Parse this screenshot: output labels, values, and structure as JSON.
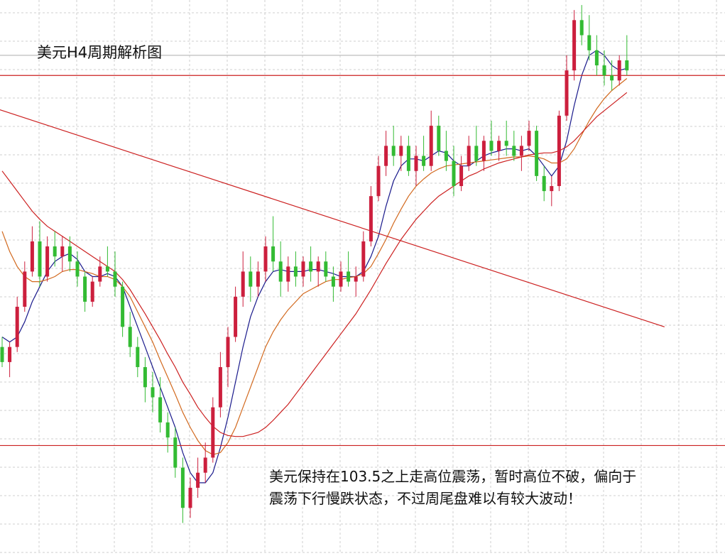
{
  "chart_data": {
    "type": "candlestick",
    "title": "美元H4周期解析图",
    "annotation_lines": [
      "美元保持在103.5之上走高位震荡，暂时高位不破，偏向于",
      "震荡下行慢跌状态，不过周尾盘难以有较大波动！"
    ],
    "xlabel": "",
    "ylabel": "",
    "grid": true,
    "ylim": [
      99.8,
      105.3
    ],
    "candles": [
      [
        101.85,
        101.95,
        101.65,
        101.7
      ],
      [
        101.7,
        101.9,
        101.55,
        101.85
      ],
      [
        101.85,
        102.35,
        101.8,
        102.25
      ],
      [
        102.25,
        102.7,
        102.2,
        102.6
      ],
      [
        102.6,
        103.05,
        102.55,
        102.9
      ],
      [
        102.9,
        103.1,
        102.45,
        102.55
      ],
      [
        102.55,
        102.95,
        102.5,
        102.85
      ],
      [
        102.85,
        103.0,
        102.65,
        102.75
      ],
      [
        102.75,
        102.95,
        102.6,
        102.85
      ],
      [
        102.85,
        102.95,
        102.6,
        102.7
      ],
      [
        102.7,
        102.8,
        102.45,
        102.55
      ],
      [
        102.55,
        102.6,
        102.2,
        102.3
      ],
      [
        102.3,
        102.55,
        102.25,
        102.5
      ],
      [
        102.5,
        102.75,
        102.45,
        102.65
      ],
      [
        102.65,
        102.85,
        102.55,
        102.6
      ],
      [
        102.6,
        102.8,
        102.35,
        102.45
      ],
      [
        102.45,
        102.5,
        101.95,
        102.05
      ],
      [
        102.05,
        102.2,
        101.75,
        101.85
      ],
      [
        101.85,
        101.95,
        101.55,
        101.65
      ],
      [
        101.65,
        101.75,
        101.3,
        101.45
      ],
      [
        101.45,
        101.6,
        101.2,
        101.35
      ],
      [
        101.35,
        101.55,
        101.0,
        101.1
      ],
      [
        101.1,
        101.2,
        100.8,
        100.95
      ],
      [
        100.95,
        101.05,
        100.55,
        100.65
      ],
      [
        100.65,
        100.75,
        100.1,
        100.25
      ],
      [
        100.25,
        100.55,
        100.15,
        100.45
      ],
      [
        100.45,
        100.75,
        100.35,
        100.6
      ],
      [
        100.6,
        100.9,
        100.5,
        100.75
      ],
      [
        100.75,
        101.35,
        100.7,
        101.25
      ],
      [
        101.25,
        101.8,
        101.15,
        101.65
      ],
      [
        101.65,
        102.05,
        101.45,
        101.95
      ],
      [
        101.95,
        102.45,
        101.9,
        102.35
      ],
      [
        102.35,
        102.8,
        102.25,
        102.6
      ],
      [
        102.6,
        102.75,
        102.3,
        102.45
      ],
      [
        102.45,
        102.7,
        102.35,
        102.6
      ],
      [
        102.6,
        102.95,
        102.5,
        102.85
      ],
      [
        102.85,
        103.15,
        102.6,
        102.7
      ],
      [
        102.7,
        102.9,
        102.35,
        102.5
      ],
      [
        102.5,
        102.75,
        102.4,
        102.65
      ],
      [
        102.65,
        102.8,
        102.45,
        102.55
      ],
      [
        102.55,
        102.75,
        102.45,
        102.7
      ],
      [
        102.7,
        102.85,
        102.5,
        102.6
      ],
      [
        102.6,
        102.75,
        102.45,
        102.7
      ],
      [
        102.7,
        102.8,
        102.5,
        102.55
      ],
      [
        102.55,
        102.65,
        102.3,
        102.45
      ],
      [
        102.45,
        102.7,
        102.4,
        102.6
      ],
      [
        102.6,
        102.8,
        102.45,
        102.5
      ],
      [
        102.5,
        102.65,
        102.35,
        102.55
      ],
      [
        102.55,
        103.0,
        102.5,
        102.9
      ],
      [
        102.9,
        103.45,
        102.85,
        103.35
      ],
      [
        103.35,
        103.75,
        103.3,
        103.65
      ],
      [
        103.65,
        104.0,
        103.55,
        103.85
      ],
      [
        103.85,
        104.05,
        103.65,
        103.75
      ],
      [
        103.75,
        103.95,
        103.6,
        103.85
      ],
      [
        103.85,
        103.95,
        103.55,
        103.6
      ],
      [
        103.6,
        103.85,
        103.45,
        103.75
      ],
      [
        103.75,
        103.95,
        103.6,
        103.65
      ],
      [
        103.65,
        104.2,
        103.6,
        104.05
      ],
      [
        104.05,
        104.15,
        103.75,
        103.8
      ],
      [
        103.8,
        104.0,
        103.6,
        103.7
      ],
      [
        103.7,
        103.85,
        103.35,
        103.45
      ],
      [
        103.45,
        103.75,
        103.4,
        103.65
      ],
      [
        103.65,
        103.95,
        103.6,
        103.85
      ],
      [
        103.85,
        104.05,
        103.65,
        103.7
      ],
      [
        103.7,
        103.95,
        103.6,
        103.9
      ],
      [
        103.9,
        104.1,
        103.75,
        103.8
      ],
      [
        103.8,
        103.95,
        103.7,
        103.9
      ],
      [
        103.9,
        104.1,
        103.75,
        103.85
      ],
      [
        103.85,
        104.0,
        103.7,
        103.75
      ],
      [
        103.75,
        103.95,
        103.6,
        103.85
      ],
      [
        103.85,
        104.1,
        103.8,
        104.0
      ],
      [
        104.0,
        104.05,
        103.5,
        103.55
      ],
      [
        103.55,
        103.65,
        103.3,
        103.4
      ],
      [
        103.4,
        103.55,
        103.25,
        103.45
      ],
      [
        103.45,
        104.2,
        103.4,
        104.15
      ],
      [
        104.15,
        104.75,
        104.1,
        104.6
      ],
      [
        104.6,
        105.2,
        104.5,
        105.1
      ],
      [
        105.1,
        105.25,
        104.85,
        104.95
      ],
      [
        104.95,
        105.15,
        104.7,
        104.8
      ],
      [
        104.8,
        104.95,
        104.55,
        104.65
      ],
      [
        104.65,
        104.8,
        104.45,
        104.55
      ],
      [
        104.55,
        104.7,
        104.4,
        104.5
      ],
      [
        104.5,
        104.75,
        104.45,
        104.7
      ],
      [
        104.7,
        104.95,
        104.55,
        104.6
      ]
    ],
    "moving_averages": [
      {
        "color": "#1a1a8c",
        "values": [
          101.95,
          101.9,
          101.95,
          102.1,
          102.3,
          102.45,
          102.6,
          102.7,
          102.75,
          102.78,
          102.72,
          102.6,
          102.55,
          102.55,
          102.58,
          102.55,
          102.45,
          102.25,
          102.05,
          101.85,
          101.65,
          101.45,
          101.25,
          101.05,
          100.8,
          100.6,
          100.5,
          100.5,
          100.6,
          100.85,
          101.15,
          101.5,
          101.85,
          102.15,
          102.35,
          102.5,
          102.6,
          102.62,
          102.6,
          102.6,
          102.6,
          102.62,
          102.62,
          102.6,
          102.58,
          102.55,
          102.55,
          102.55,
          102.6,
          102.75,
          102.95,
          103.25,
          103.5,
          103.65,
          103.72,
          103.72,
          103.7,
          103.75,
          103.8,
          103.78,
          103.7,
          103.65,
          103.65,
          103.7,
          103.75,
          103.78,
          103.8,
          103.82,
          103.82,
          103.8,
          103.82,
          103.75,
          103.65,
          103.55,
          103.65,
          103.9,
          104.25,
          104.55,
          104.75,
          104.8,
          104.75,
          104.65,
          104.6,
          104.62
        ]
      },
      {
        "color": "#d2691e",
        "values": [
          103.0,
          102.8,
          102.65,
          102.55,
          102.5,
          102.5,
          102.52,
          102.55,
          102.6,
          102.62,
          102.62,
          102.6,
          102.58,
          102.55,
          102.55,
          102.52,
          102.45,
          102.35,
          102.2,
          102.05,
          101.9,
          101.72,
          101.55,
          101.38,
          101.2,
          101.05,
          100.92,
          100.82,
          100.78,
          100.8,
          100.9,
          101.05,
          101.25,
          101.45,
          101.65,
          101.85,
          102.0,
          102.12,
          102.22,
          102.3,
          102.38,
          102.42,
          102.46,
          102.5,
          102.52,
          102.52,
          102.54,
          102.55,
          102.58,
          102.65,
          102.78,
          102.92,
          103.08,
          103.22,
          103.35,
          103.45,
          103.52,
          103.58,
          103.62,
          103.65,
          103.66,
          103.67,
          103.68,
          103.69,
          103.7,
          103.71,
          103.72,
          103.73,
          103.74,
          103.74,
          103.75,
          103.74,
          103.72,
          103.68,
          103.68,
          103.72,
          103.82,
          103.96,
          104.1,
          104.22,
          104.32,
          104.4,
          104.46,
          104.52
        ]
      },
      {
        "color": "#cc2020",
        "values": [
          103.6,
          103.5,
          103.4,
          103.3,
          103.2,
          103.12,
          103.05,
          103.0,
          102.95,
          102.9,
          102.85,
          102.8,
          102.75,
          102.7,
          102.65,
          102.6,
          102.52,
          102.42,
          102.3,
          102.18,
          102.05,
          101.92,
          101.78,
          101.65,
          101.5,
          101.38,
          101.25,
          101.15,
          101.06,
          101.0,
          100.97,
          100.96,
          100.96,
          100.98,
          101.0,
          101.05,
          101.12,
          101.2,
          101.28,
          101.38,
          101.48,
          101.58,
          101.68,
          101.78,
          101.88,
          101.98,
          102.08,
          102.18,
          102.3,
          102.42,
          102.55,
          102.68,
          102.8,
          102.92,
          103.02,
          103.12,
          103.2,
          103.28,
          103.35,
          103.4,
          103.45,
          103.5,
          103.55,
          103.58,
          103.62,
          103.65,
          103.68,
          103.7,
          103.72,
          103.74,
          103.76,
          103.77,
          103.78,
          103.78,
          103.8,
          103.84,
          103.9,
          103.98,
          104.06,
          104.14,
          104.2,
          104.26,
          104.32,
          104.38
        ]
      }
    ],
    "horizontal_lines": [
      {
        "value": 104.55,
        "color": "#cc2020"
      },
      {
        "value": 100.87,
        "color": "#cc2020"
      },
      {
        "value": 104.75,
        "color": "#bdbdbd"
      }
    ],
    "trendline": {
      "from": [
        -2,
        104.25
      ],
      "to": [
        88,
        102.05
      ],
      "color": "#cc2020"
    },
    "colors": {
      "bull": "#cc1f3d",
      "bear": "#33bb33",
      "grid": "#cfcfcf",
      "background": "#ffffff"
    }
  }
}
